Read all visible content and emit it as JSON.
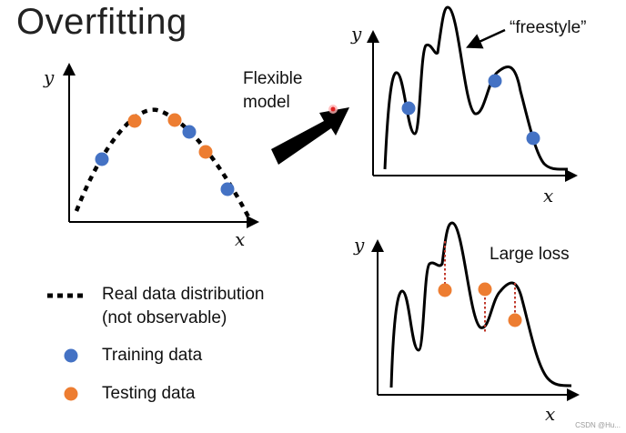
{
  "title": "Overfitting",
  "flexible_model_label": [
    "Flexible",
    "model"
  ],
  "freestyle_label": "“freestyle”",
  "large_loss_label": "Large loss",
  "axis": {
    "x": "x",
    "y": "y"
  },
  "legend": {
    "real": [
      "Real data distribution",
      "(not observable)"
    ],
    "training": "Training data",
    "testing": "Testing data"
  },
  "colors": {
    "training": "#4472C4",
    "testing": "#ED7D31",
    "loss_line": "#C0392B",
    "ink": "#000000"
  },
  "watermark": "CSDN @Hu..."
}
